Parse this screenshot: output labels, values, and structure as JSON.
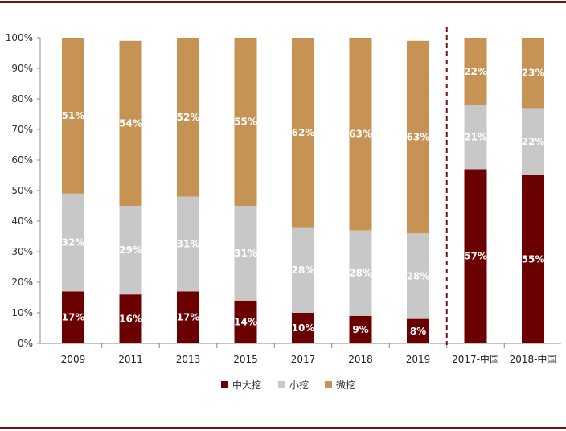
{
  "chart_data": {
    "type": "bar",
    "stacked": true,
    "percent": true,
    "title": "",
    "xlabel": "",
    "ylabel": "",
    "ylim": [
      0,
      100
    ],
    "ytick_step": 10,
    "categories": [
      "2009",
      "2011",
      "2013",
      "2015",
      "2017",
      "2018",
      "2019",
      "2017-中国",
      "2018-中国"
    ],
    "separator_after_index": 6,
    "series": [
      {
        "name": "中大挖",
        "color": "#6b0000",
        "values": [
          17,
          16,
          17,
          14,
          10,
          9,
          8,
          57,
          55
        ],
        "labels": [
          "17%",
          "16%",
          "17%",
          "14%",
          "10%",
          "9%",
          "8%",
          "57%",
          "55%"
        ]
      },
      {
        "name": "小挖",
        "color": "#c8c8c8",
        "values": [
          32,
          29,
          31,
          31,
          28,
          28,
          28,
          21,
          22
        ],
        "labels": [
          "32%",
          "29%",
          "31%",
          "31%",
          "28%",
          "28%",
          "28%",
          "21%",
          "22%"
        ]
      },
      {
        "name": "微挖",
        "color": "#c69354",
        "values": [
          51,
          54,
          52,
          55,
          62,
          63,
          63,
          22,
          23
        ],
        "labels": [
          "51%",
          "54%",
          "52%",
          "55%",
          "62%",
          "63%",
          "63%",
          "22%",
          "23%"
        ]
      }
    ],
    "legend": [
      "中大挖",
      "小挖",
      "微挖"
    ],
    "legend_position": "bottom",
    "grid": false
  },
  "colors": {
    "rule": "#7b1113",
    "separator": "#7b1113",
    "axis": "#888888"
  }
}
